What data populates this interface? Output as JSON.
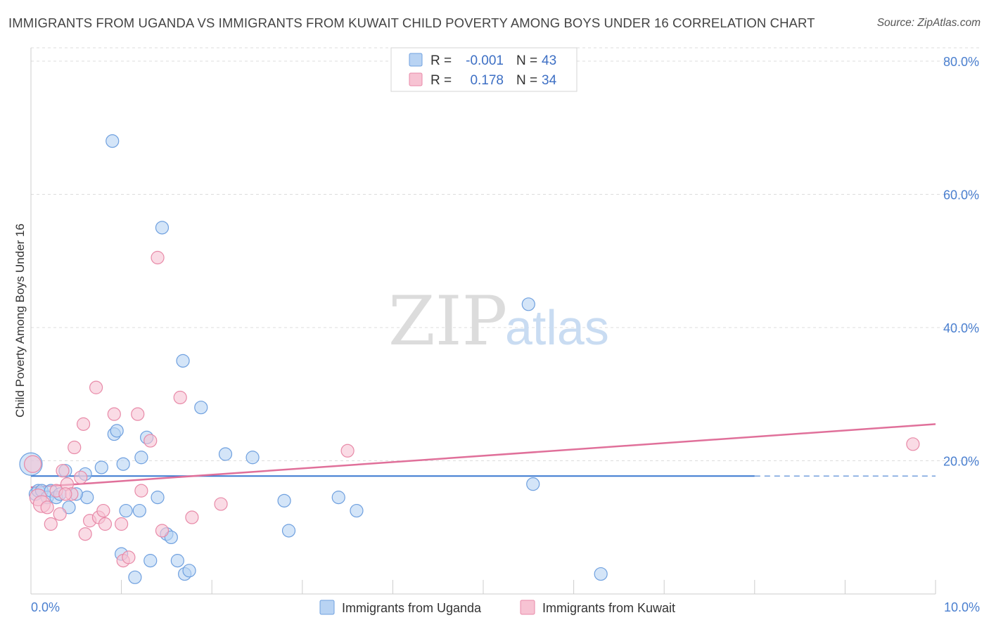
{
  "title": "IMMIGRANTS FROM UGANDA VS IMMIGRANTS FROM KUWAIT CHILD POVERTY AMONG BOYS UNDER 16 CORRELATION CHART",
  "source": "Source: ZipAtlas.com",
  "watermark": {
    "zip": "ZIP",
    "atlas": "atlas"
  },
  "colors": {
    "uganda_fill": "#b8d3f3",
    "uganda_stroke": "#6fa0df",
    "uganda_line": "#3a78d0",
    "kuwait_fill": "#f7c3d3",
    "kuwait_stroke": "#e88aa8",
    "kuwait_line": "#e0709a",
    "grid": "#dddddd",
    "tick": "#4a7fcf"
  },
  "stats_box": {
    "rows": [
      {
        "r_label": "R =",
        "r_value": "-0.001",
        "n_label": "N =",
        "n_value": "43"
      },
      {
        "r_label": "R =",
        "r_value": "0.178",
        "n_label": "N =",
        "n_value": "34"
      }
    ]
  },
  "chart_data": {
    "type": "scatter",
    "title": "IMMIGRANTS FROM UGANDA VS IMMIGRANTS FROM KUWAIT CHILD POVERTY AMONG BOYS UNDER 16 CORRELATION CHART",
    "xlabel": "",
    "ylabel": "Child Poverty Among Boys Under 16",
    "xlim": [
      0,
      10
    ],
    "ylim": [
      0,
      82
    ],
    "x_ticks": [
      {
        "value": 0,
        "label": "0.0%"
      },
      {
        "value": 10,
        "label": "10.0%"
      }
    ],
    "y_ticks": [
      {
        "value": 20,
        "label": "20.0%"
      },
      {
        "value": 40,
        "label": "40.0%"
      },
      {
        "value": 60,
        "label": "60.0%"
      },
      {
        "value": 80,
        "label": "80.0%"
      }
    ],
    "grid": true,
    "legend_position": "bottom-center",
    "series": [
      {
        "name": "Immigrants from Uganda",
        "r": -0.001,
        "n": 43,
        "trend": {
          "x0": 0,
          "y0": 17.7,
          "x1": 8.0,
          "y1": 17.7,
          "dashed_to_x": 10,
          "dashed_y": 17.7
        },
        "points": [
          [
            0.0,
            19.5,
            16
          ],
          [
            0.05,
            15.0,
            9
          ],
          [
            0.08,
            15.5,
            9
          ],
          [
            0.12,
            15.5,
            9
          ],
          [
            0.18,
            14.5,
            9
          ],
          [
            0.22,
            15.5,
            9
          ],
          [
            0.28,
            14.5,
            9
          ],
          [
            0.32,
            15.0,
            9
          ],
          [
            0.38,
            18.5,
            9
          ],
          [
            0.42,
            13.0,
            9
          ],
          [
            0.62,
            14.5,
            9
          ],
          [
            0.78,
            19.0,
            9
          ],
          [
            0.9,
            68.0,
            9
          ],
          [
            0.92,
            24.0,
            9
          ],
          [
            0.95,
            24.5,
            9
          ],
          [
            1.0,
            6.0,
            9
          ],
          [
            1.02,
            19.5,
            9
          ],
          [
            1.05,
            12.5,
            9
          ],
          [
            1.15,
            2.5,
            9
          ],
          [
            1.22,
            20.5,
            9
          ],
          [
            1.28,
            23.5,
            9
          ],
          [
            1.32,
            5.0,
            9
          ],
          [
            1.4,
            14.5,
            9
          ],
          [
            1.5,
            9.0,
            9
          ],
          [
            1.55,
            8.5,
            9
          ],
          [
            1.62,
            5.0,
            9
          ],
          [
            1.68,
            35.0,
            9
          ],
          [
            1.7,
            3.0,
            9
          ],
          [
            1.75,
            3.5,
            9
          ],
          [
            1.88,
            28.0,
            9
          ],
          [
            2.15,
            21.0,
            9
          ],
          [
            2.45,
            20.5,
            9
          ],
          [
            2.8,
            14.0,
            9
          ],
          [
            2.85,
            9.5,
            9
          ],
          [
            3.4,
            14.5,
            9
          ],
          [
            3.6,
            12.5,
            9
          ],
          [
            1.45,
            55.0,
            9
          ],
          [
            5.5,
            43.5,
            9
          ],
          [
            5.55,
            16.5,
            9
          ],
          [
            6.3,
            3.0,
            9
          ],
          [
            0.5,
            15.0,
            9
          ],
          [
            0.6,
            18.0,
            9
          ],
          [
            1.2,
            12.5,
            9
          ]
        ]
      },
      {
        "name": "Immigrants from Kuwait",
        "r": 0.178,
        "n": 34,
        "trend": {
          "x0": 0,
          "y0": 16.0,
          "x1": 10,
          "y1": 25.5
        },
        "points": [
          [
            0.02,
            19.5,
            12
          ],
          [
            0.08,
            14.5,
            12
          ],
          [
            0.12,
            13.5,
            12
          ],
          [
            0.18,
            13.0,
            9
          ],
          [
            0.22,
            10.5,
            9
          ],
          [
            0.28,
            15.5,
            9
          ],
          [
            0.32,
            12.0,
            9
          ],
          [
            0.35,
            18.5,
            9
          ],
          [
            0.4,
            16.5,
            9
          ],
          [
            0.45,
            15.0,
            9
          ],
          [
            0.48,
            22.0,
            9
          ],
          [
            0.55,
            17.5,
            9
          ],
          [
            0.58,
            25.5,
            9
          ],
          [
            0.6,
            9.0,
            9
          ],
          [
            0.65,
            11.0,
            9
          ],
          [
            0.72,
            31.0,
            9
          ],
          [
            0.75,
            11.5,
            9
          ],
          [
            0.8,
            12.5,
            9
          ],
          [
            0.82,
            10.5,
            9
          ],
          [
            0.92,
            27.0,
            9
          ],
          [
            1.0,
            10.5,
            9
          ],
          [
            1.02,
            5.0,
            9
          ],
          [
            1.08,
            5.5,
            9
          ],
          [
            1.18,
            27.0,
            9
          ],
          [
            1.22,
            15.5,
            9
          ],
          [
            1.32,
            23.0,
            9
          ],
          [
            1.4,
            50.5,
            9
          ],
          [
            1.45,
            9.5,
            9
          ],
          [
            1.65,
            29.5,
            9
          ],
          [
            1.78,
            11.5,
            9
          ],
          [
            2.1,
            13.5,
            9
          ],
          [
            3.5,
            21.5,
            9
          ],
          [
            9.75,
            22.5,
            9
          ],
          [
            0.38,
            15.0,
            9
          ]
        ]
      }
    ]
  },
  "legend": {
    "items": [
      {
        "label": "Immigrants from Uganda"
      },
      {
        "label": "Immigrants from Kuwait"
      }
    ]
  }
}
